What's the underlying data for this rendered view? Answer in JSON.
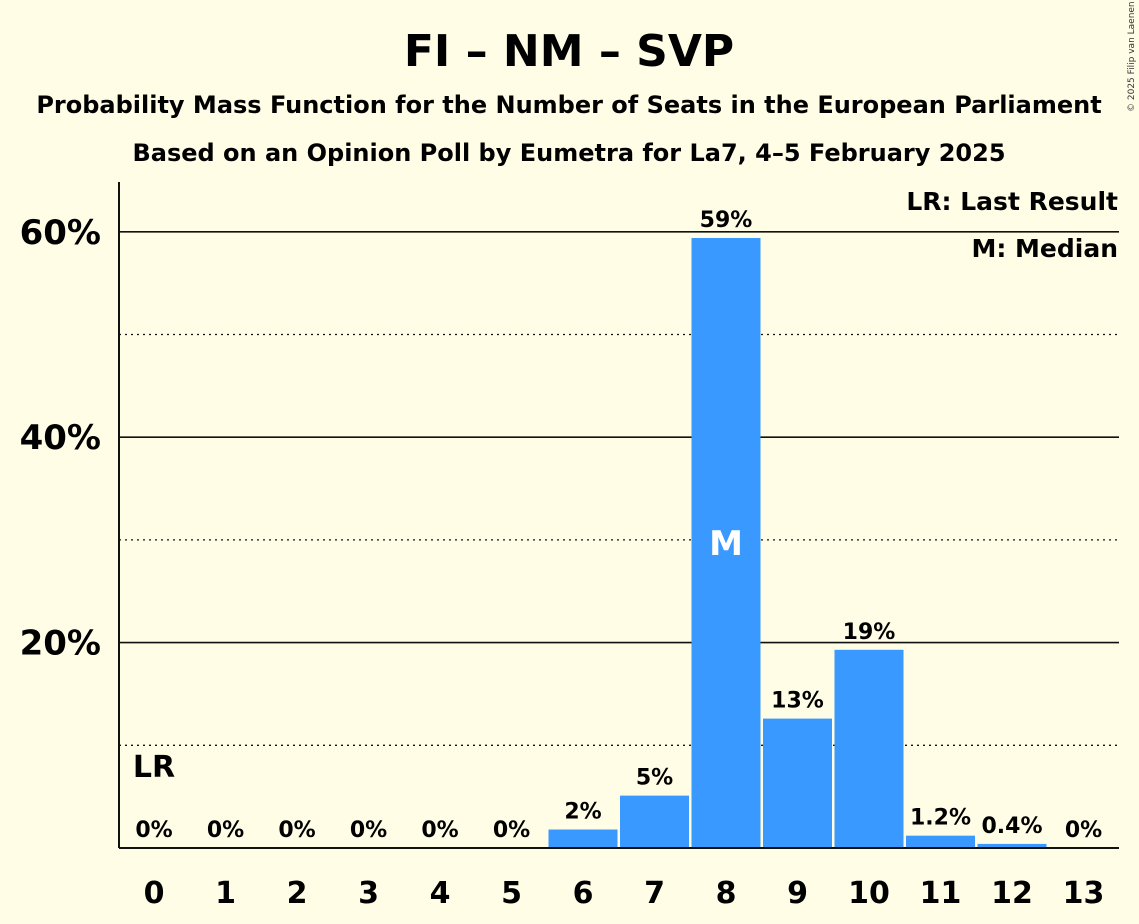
{
  "chart_data": {
    "type": "bar",
    "title": "FI – NM – SVP",
    "subtitle": "Probability Mass Function for the Number of Seats in the European Parliament",
    "subtitle2": "Based on an Opinion Poll by Eumetra for La7, 4–5 February 2025",
    "categories": [
      "0",
      "1",
      "2",
      "3",
      "4",
      "5",
      "6",
      "7",
      "8",
      "9",
      "10",
      "11",
      "12",
      "13"
    ],
    "values": [
      0,
      0,
      0,
      0,
      0,
      0,
      1.8,
      5.1,
      59.4,
      12.6,
      19.3,
      1.2,
      0.4,
      0
    ],
    "data_labels": [
      "0%",
      "0%",
      "0%",
      "0%",
      "0%",
      "0%",
      "2%",
      "5%",
      "59%",
      "13%",
      "19%",
      "1.2%",
      "0.4%",
      "0%"
    ],
    "ylim": [
      0,
      65
    ],
    "y_ticks": [
      {
        "value": 20,
        "label": "20%"
      },
      {
        "value": 40,
        "label": "40%"
      },
      {
        "value": 60,
        "label": "60%"
      }
    ],
    "minor_gridlines": [
      10,
      30,
      50
    ],
    "median_index": 8,
    "median_mark": "M",
    "last_result_index": 0,
    "last_result_mark": "LR",
    "legend": [
      "LR: Last Result",
      "M: Median"
    ],
    "legend_position": "top-right",
    "bar_color": "#3A99FF",
    "copyright": "© 2025 Filip van Laenen"
  }
}
